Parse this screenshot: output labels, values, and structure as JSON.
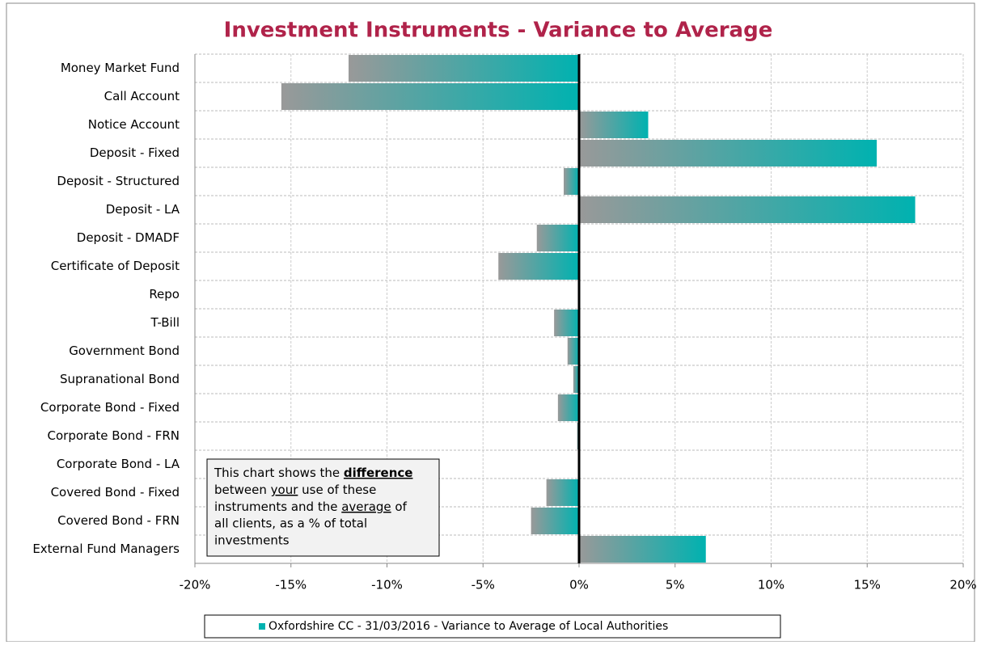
{
  "chart_data": {
    "type": "barh",
    "title": "Investment Instruments - Variance to Average",
    "categories": [
      "Money Market Fund",
      "Call Account",
      "Notice Account",
      "Deposit - Fixed",
      "Deposit - Structured",
      "Deposit - LA",
      "Deposit - DMADF",
      "Certificate of Deposit",
      "Repo",
      "T-Bill",
      "Government Bond",
      "Supranational Bond",
      "Corporate Bond - Fixed",
      "Corporate Bond - FRN",
      "Corporate Bond - LA",
      "Covered Bond - Fixed",
      "Covered Bond - FRN",
      "External Fund Managers"
    ],
    "series": [
      {
        "name": "Oxfordshire CC - 31/03/2016 - Variance to Average of Local Authorities",
        "color": "#00b2b0",
        "values": [
          -12.0,
          -15.5,
          3.6,
          15.5,
          -0.8,
          17.5,
          -2.2,
          -4.2,
          0,
          -1.3,
          -0.6,
          -0.3,
          -1.1,
          -0.1,
          -0.05,
          -1.7,
          -2.5,
          6.6
        ]
      }
    ],
    "xlim": [
      -20,
      20
    ],
    "xticks": [
      {
        "value": -20,
        "label": "-20%"
      },
      {
        "value": -15,
        "label": "-15%"
      },
      {
        "value": -10,
        "label": "-10%"
      },
      {
        "value": -5,
        "label": "-5%"
      },
      {
        "value": 0,
        "label": "0%"
      },
      {
        "value": 5,
        "label": "5%"
      },
      {
        "value": 10,
        "label": "10%"
      },
      {
        "value": 15,
        "label": "15%"
      },
      {
        "value": 20,
        "label": "20%"
      }
    ],
    "grid": true,
    "annotation": [
      "This chart shows the ",
      "difference",
      "between ",
      "your",
      " use of these",
      "instruments and the ",
      "average",
      " of",
      "all clients, as a % of total",
      "investments"
    ]
  }
}
